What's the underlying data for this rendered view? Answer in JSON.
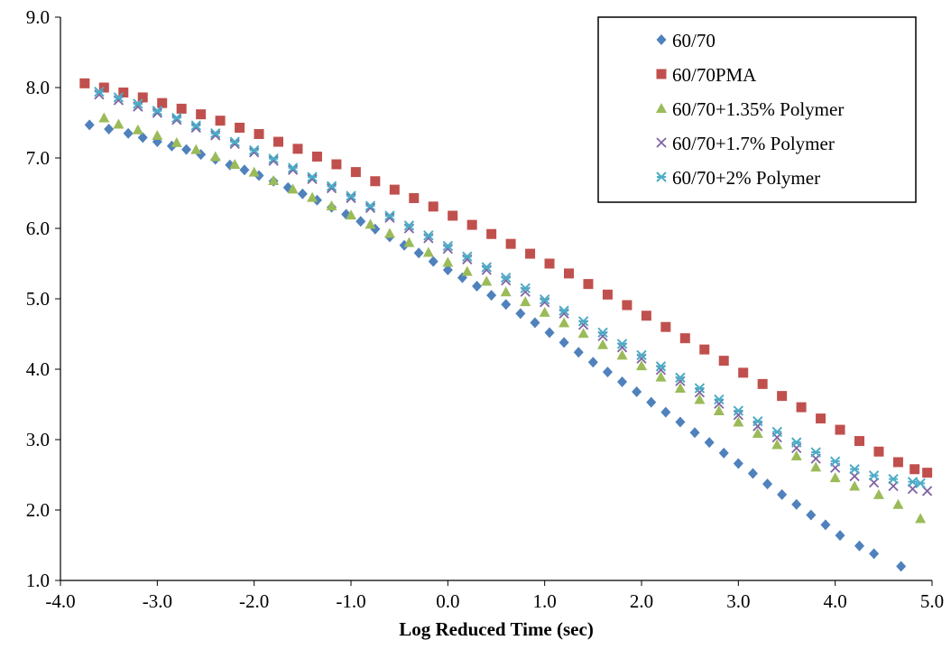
{
  "chart_data": {
    "type": "scatter",
    "title": "",
    "xlabel": "Log Reduced Time (sec)",
    "ylabel": "",
    "xlim": [
      -4.0,
      5.0
    ],
    "ylim": [
      1.0,
      9.0
    ],
    "x_ticks": [
      "-4.0",
      "-3.0",
      "-2.0",
      "-1.0",
      "0.0",
      "1.0",
      "2.0",
      "3.0",
      "4.0",
      "5.0"
    ],
    "y_ticks": [
      "1.0",
      "2.0",
      "3.0",
      "4.0",
      "5.0",
      "6.0",
      "7.0",
      "8.0",
      "9.0"
    ],
    "grid": false,
    "legend_position": "top-right",
    "series": [
      {
        "name": "60/70",
        "marker": "diamond",
        "color": "#4f81bd",
        "points": [
          [
            -3.7,
            7.47
          ],
          [
            -3.5,
            7.41
          ],
          [
            -3.3,
            7.35
          ],
          [
            -3.15,
            7.29
          ],
          [
            -3.0,
            7.23
          ],
          [
            -2.85,
            7.17
          ],
          [
            -2.7,
            7.12
          ],
          [
            -2.55,
            7.05
          ],
          [
            -2.4,
            6.98
          ],
          [
            -2.25,
            6.9
          ],
          [
            -2.1,
            6.83
          ],
          [
            -1.95,
            6.75
          ],
          [
            -1.8,
            6.67
          ],
          [
            -1.65,
            6.58
          ],
          [
            -1.5,
            6.49
          ],
          [
            -1.35,
            6.4
          ],
          [
            -1.2,
            6.3
          ],
          [
            -1.05,
            6.2
          ],
          [
            -0.9,
            6.1
          ],
          [
            -0.75,
            5.99
          ],
          [
            -0.6,
            5.88
          ],
          [
            -0.45,
            5.76
          ],
          [
            -0.3,
            5.65
          ],
          [
            -0.15,
            5.53
          ],
          [
            0.0,
            5.41
          ],
          [
            0.15,
            5.3
          ],
          [
            0.3,
            5.18
          ],
          [
            0.45,
            5.05
          ],
          [
            0.6,
            4.92
          ],
          [
            0.75,
            4.79
          ],
          [
            0.9,
            4.66
          ],
          [
            1.05,
            4.52
          ],
          [
            1.2,
            4.38
          ],
          [
            1.35,
            4.24
          ],
          [
            1.5,
            4.1
          ],
          [
            1.65,
            3.96
          ],
          [
            1.8,
            3.82
          ],
          [
            1.95,
            3.68
          ],
          [
            2.1,
            3.53
          ],
          [
            2.25,
            3.39
          ],
          [
            2.4,
            3.25
          ],
          [
            2.55,
            3.1
          ],
          [
            2.7,
            2.96
          ],
          [
            2.85,
            2.81
          ],
          [
            3.0,
            2.66
          ],
          [
            3.15,
            2.52
          ],
          [
            3.3,
            2.37
          ],
          [
            3.45,
            2.22
          ],
          [
            3.6,
            2.08
          ],
          [
            3.75,
            1.93
          ],
          [
            3.9,
            1.79
          ],
          [
            4.05,
            1.64
          ],
          [
            4.25,
            1.49
          ],
          [
            4.4,
            1.38
          ],
          [
            4.68,
            1.2
          ]
        ]
      },
      {
        "name": "60/70PMA",
        "marker": "square",
        "color": "#c0504d",
        "points": [
          [
            -3.75,
            8.06
          ],
          [
            -3.55,
            8.0
          ],
          [
            -3.35,
            7.93
          ],
          [
            -3.15,
            7.86
          ],
          [
            -2.95,
            7.78
          ],
          [
            -2.75,
            7.7
          ],
          [
            -2.55,
            7.62
          ],
          [
            -2.35,
            7.53
          ],
          [
            -2.15,
            7.43
          ],
          [
            -1.95,
            7.34
          ],
          [
            -1.75,
            7.23
          ],
          [
            -1.55,
            7.13
          ],
          [
            -1.35,
            7.02
          ],
          [
            -1.15,
            6.91
          ],
          [
            -0.95,
            6.8
          ],
          [
            -0.75,
            6.67
          ],
          [
            -0.55,
            6.55
          ],
          [
            -0.35,
            6.43
          ],
          [
            -0.15,
            6.31
          ],
          [
            0.05,
            6.18
          ],
          [
            0.25,
            6.05
          ],
          [
            0.45,
            5.92
          ],
          [
            0.65,
            5.78
          ],
          [
            0.85,
            5.64
          ],
          [
            1.05,
            5.5
          ],
          [
            1.25,
            5.36
          ],
          [
            1.45,
            5.21
          ],
          [
            1.65,
            5.06
          ],
          [
            1.85,
            4.91
          ],
          [
            2.05,
            4.76
          ],
          [
            2.25,
            4.6
          ],
          [
            2.45,
            4.44
          ],
          [
            2.65,
            4.28
          ],
          [
            2.85,
            4.12
          ],
          [
            3.05,
            3.95
          ],
          [
            3.25,
            3.79
          ],
          [
            3.45,
            3.62
          ],
          [
            3.65,
            3.46
          ],
          [
            3.85,
            3.3
          ],
          [
            4.05,
            3.14
          ],
          [
            4.25,
            2.98
          ],
          [
            4.45,
            2.83
          ],
          [
            4.65,
            2.68
          ],
          [
            4.82,
            2.58
          ],
          [
            4.95,
            2.53
          ]
        ]
      },
      {
        "name": "60/70+1.35% Polymer",
        "marker": "triangle",
        "color": "#9bbb59",
        "points": [
          [
            -3.55,
            7.57
          ],
          [
            -3.4,
            7.48
          ],
          [
            -3.2,
            7.4
          ],
          [
            -3.0,
            7.32
          ],
          [
            -2.8,
            7.22
          ],
          [
            -2.6,
            7.12
          ],
          [
            -2.4,
            7.02
          ],
          [
            -2.2,
            6.91
          ],
          [
            -2.0,
            6.8
          ],
          [
            -1.8,
            6.68
          ],
          [
            -1.6,
            6.56
          ],
          [
            -1.4,
            6.44
          ],
          [
            -1.2,
            6.32
          ],
          [
            -1.0,
            6.19
          ],
          [
            -0.8,
            6.06
          ],
          [
            -0.6,
            5.93
          ],
          [
            -0.4,
            5.8
          ],
          [
            -0.2,
            5.66
          ],
          [
            0.0,
            5.52
          ],
          [
            0.2,
            5.39
          ],
          [
            0.4,
            5.25
          ],
          [
            0.6,
            5.1
          ],
          [
            0.8,
            4.96
          ],
          [
            1.0,
            4.81
          ],
          [
            1.2,
            4.66
          ],
          [
            1.4,
            4.51
          ],
          [
            1.6,
            4.35
          ],
          [
            1.8,
            4.2
          ],
          [
            2.0,
            4.05
          ],
          [
            2.2,
            3.89
          ],
          [
            2.4,
            3.73
          ],
          [
            2.6,
            3.57
          ],
          [
            2.8,
            3.41
          ],
          [
            3.0,
            3.25
          ],
          [
            3.2,
            3.09
          ],
          [
            3.4,
            2.93
          ],
          [
            3.6,
            2.77
          ],
          [
            3.8,
            2.61
          ],
          [
            4.0,
            2.46
          ],
          [
            4.2,
            2.34
          ],
          [
            4.45,
            2.22
          ],
          [
            4.65,
            2.08
          ],
          [
            4.88,
            1.88
          ]
        ]
      },
      {
        "name": "60/70+1.7% Polymer",
        "marker": "x",
        "color": "#8064a2",
        "points": [
          [
            -3.6,
            7.9
          ],
          [
            -3.4,
            7.82
          ],
          [
            -3.2,
            7.73
          ],
          [
            -3.0,
            7.64
          ],
          [
            -2.8,
            7.54
          ],
          [
            -2.6,
            7.43
          ],
          [
            -2.4,
            7.32
          ],
          [
            -2.2,
            7.2
          ],
          [
            -2.0,
            7.08
          ],
          [
            -1.8,
            6.96
          ],
          [
            -1.6,
            6.83
          ],
          [
            -1.4,
            6.7
          ],
          [
            -1.2,
            6.57
          ],
          [
            -1.0,
            6.43
          ],
          [
            -0.8,
            6.29
          ],
          [
            -0.6,
            6.15
          ],
          [
            -0.4,
            6.0
          ],
          [
            -0.2,
            5.86
          ],
          [
            0.0,
            5.71
          ],
          [
            0.2,
            5.56
          ],
          [
            0.4,
            5.41
          ],
          [
            0.6,
            5.26
          ],
          [
            0.8,
            5.1
          ],
          [
            1.0,
            4.95
          ],
          [
            1.2,
            4.79
          ],
          [
            1.4,
            4.63
          ],
          [
            1.6,
            4.47
          ],
          [
            1.8,
            4.31
          ],
          [
            2.0,
            4.15
          ],
          [
            2.2,
            3.99
          ],
          [
            2.4,
            3.83
          ],
          [
            2.6,
            3.67
          ],
          [
            2.8,
            3.51
          ],
          [
            3.0,
            3.35
          ],
          [
            3.2,
            3.19
          ],
          [
            3.4,
            3.03
          ],
          [
            3.6,
            2.88
          ],
          [
            3.8,
            2.73
          ],
          [
            4.0,
            2.6
          ],
          [
            4.2,
            2.48
          ],
          [
            4.4,
            2.39
          ],
          [
            4.6,
            2.34
          ],
          [
            4.8,
            2.3
          ],
          [
            4.95,
            2.27
          ]
        ]
      },
      {
        "name": "60/70+2% Polymer",
        "marker": "asterisk",
        "color": "#4bacc6",
        "points": [
          [
            -3.6,
            7.94
          ],
          [
            -3.4,
            7.86
          ],
          [
            -3.2,
            7.77
          ],
          [
            -3.0,
            7.67
          ],
          [
            -2.8,
            7.57
          ],
          [
            -2.6,
            7.46
          ],
          [
            -2.4,
            7.35
          ],
          [
            -2.2,
            7.23
          ],
          [
            -2.0,
            7.11
          ],
          [
            -1.8,
            6.99
          ],
          [
            -1.6,
            6.86
          ],
          [
            -1.4,
            6.73
          ],
          [
            -1.2,
            6.6
          ],
          [
            -1.0,
            6.46
          ],
          [
            -0.8,
            6.32
          ],
          [
            -0.6,
            6.18
          ],
          [
            -0.4,
            6.04
          ],
          [
            -0.2,
            5.9
          ],
          [
            0.0,
            5.75
          ],
          [
            0.2,
            5.6
          ],
          [
            0.4,
            5.45
          ],
          [
            0.6,
            5.3
          ],
          [
            0.8,
            5.15
          ],
          [
            1.0,
            4.99
          ],
          [
            1.2,
            4.83
          ],
          [
            1.4,
            4.68
          ],
          [
            1.6,
            4.52
          ],
          [
            1.8,
            4.36
          ],
          [
            2.0,
            4.2
          ],
          [
            2.2,
            4.04
          ],
          [
            2.4,
            3.88
          ],
          [
            2.6,
            3.73
          ],
          [
            2.8,
            3.57
          ],
          [
            3.0,
            3.41
          ],
          [
            3.2,
            3.26
          ],
          [
            3.4,
            3.11
          ],
          [
            3.6,
            2.96
          ],
          [
            3.8,
            2.82
          ],
          [
            4.0,
            2.69
          ],
          [
            4.2,
            2.58
          ],
          [
            4.4,
            2.49
          ],
          [
            4.6,
            2.44
          ],
          [
            4.8,
            2.4
          ],
          [
            4.88,
            2.38
          ]
        ]
      }
    ]
  }
}
